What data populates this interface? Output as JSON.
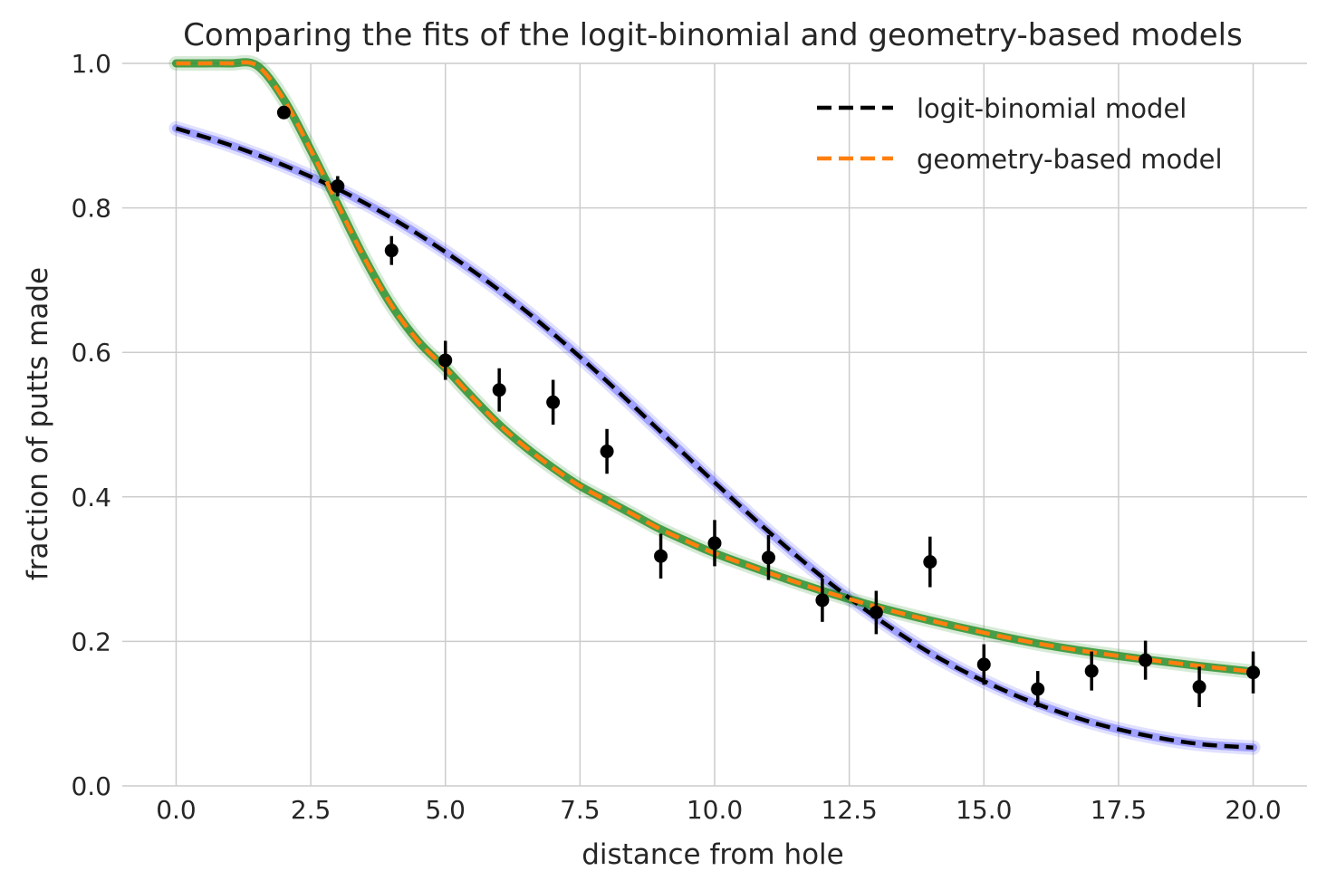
{
  "chart_data": {
    "type": "line",
    "title": "Comparing the fits of the logit-binomial and geometry-based models",
    "xlabel": "distance from hole",
    "ylabel": "fraction of putts made",
    "xlim": [
      -1.0,
      21.0
    ],
    "ylim": [
      0.0,
      1.0
    ],
    "x_ticks": [
      0.0,
      2.5,
      5.0,
      7.5,
      10.0,
      12.5,
      15.0,
      17.5,
      20.0
    ],
    "x_tick_labels": [
      "0.0",
      "2.5",
      "5.0",
      "7.5",
      "10.0",
      "12.5",
      "15.0",
      "17.5",
      "20.0"
    ],
    "y_ticks": [
      0.0,
      0.2,
      0.4,
      0.6,
      0.8,
      1.0
    ],
    "y_tick_labels": [
      "0.0",
      "0.2",
      "0.4",
      "0.6",
      "0.8",
      "1.0"
    ],
    "grid": true,
    "legend": "top-right",
    "observed": {
      "color": "#000000",
      "x": [
        2,
        3,
        4,
        5,
        6,
        7,
        8,
        9,
        10,
        11,
        12,
        13,
        14,
        15,
        16,
        17,
        18,
        19,
        20
      ],
      "y": [
        0.932,
        0.83,
        0.741,
        0.589,
        0.548,
        0.531,
        0.463,
        0.318,
        0.336,
        0.316,
        0.257,
        0.24,
        0.31,
        0.168,
        0.134,
        0.159,
        0.174,
        0.137,
        0.157
      ],
      "err": [
        0.005,
        0.014,
        0.02,
        0.027,
        0.03,
        0.031,
        0.031,
        0.031,
        0.032,
        0.031,
        0.03,
        0.03,
        0.035,
        0.028,
        0.025,
        0.027,
        0.027,
        0.028,
        0.029
      ]
    },
    "series": [
      {
        "name": "logit-binomial model",
        "color": "#000000",
        "band_color": "#5555ff",
        "x": [
          0,
          1,
          2,
          3,
          4,
          5,
          6,
          7,
          8,
          9,
          10,
          11,
          12,
          13,
          14,
          15,
          16,
          17,
          18,
          19,
          20
        ],
        "y": [
          0.91,
          0.887,
          0.859,
          0.826,
          0.786,
          0.739,
          0.686,
          0.626,
          0.56,
          0.49,
          0.42,
          0.352,
          0.289,
          0.233,
          0.184,
          0.145,
          0.113,
          0.088,
          0.07,
          0.058,
          0.053
        ]
      },
      {
        "name": "geometry-based model",
        "color": "#ff7f0e",
        "band_color": "#228b22",
        "x": [
          0,
          0.5,
          1,
          1.5,
          2,
          2.5,
          3,
          3.5,
          4,
          4.5,
          5,
          5.5,
          6,
          6.5,
          7,
          7.5,
          8,
          8.5,
          9,
          9.5,
          10,
          11,
          12,
          13,
          14,
          15,
          16,
          17,
          18,
          19,
          20
        ],
        "y": [
          1.0,
          1.0,
          1.0,
          0.997,
          0.95,
          0.88,
          0.805,
          0.73,
          0.665,
          0.615,
          0.578,
          0.538,
          0.5,
          0.468,
          0.44,
          0.415,
          0.395,
          0.375,
          0.355,
          0.338,
          0.322,
          0.295,
          0.27,
          0.248,
          0.229,
          0.212,
          0.197,
          0.185,
          0.175,
          0.166,
          0.158
        ]
      }
    ]
  }
}
